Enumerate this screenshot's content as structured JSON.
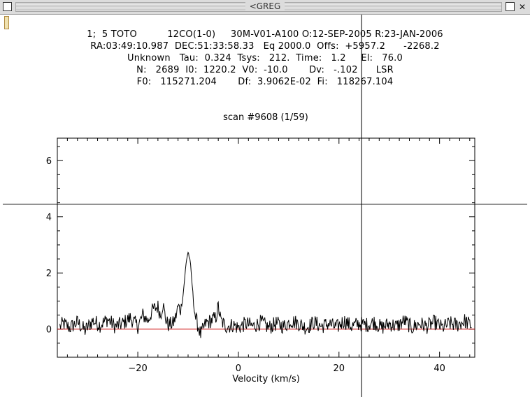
{
  "window": {
    "title": "<GREG",
    "close_icon": "close-icon",
    "maximize_icon": "maximize-icon",
    "menu_icon": "window-menu-icon"
  },
  "header": {
    "line1": "1;  5 TOTO          12CO(1-0)     30M-V01-A100 O:12-SEP-2005 R:23-JAN-2006",
    "line2": "RA:03:49:10.987  DEC:51:33:58.33   Eq 2000.0  Offs:  +5957.2      -2268.2",
    "line3": "Unknown   Tau:  0.324  Tsys:   212.  Time:   1.2     El:   76.0",
    "line4": "N:   2689  I0:  1220.2  V0:  -10.0       Dv:   -.102      LSR",
    "line5": "F0:   115271.204       Df:  3.9062E-02  Fi:   118267.104"
  },
  "plot_title": "scan #9608 (1/59)",
  "colors": {
    "baseline": "#cc0000",
    "spectrum": "#000000",
    "crosshair": "#000000"
  },
  "chart_data": {
    "type": "line",
    "title": "scan #9608 (1/59)",
    "xlabel": "Velocity (km/s)",
    "ylabel": "",
    "xlim": [
      -36,
      47
    ],
    "ylim": [
      -1,
      6.8
    ],
    "xticks": [
      -20,
      0,
      20,
      40
    ],
    "yticks": [
      0,
      2,
      4,
      6
    ],
    "baseline_y": 0,
    "cursor": {
      "x": 24.5,
      "y": 4.45
    },
    "series": [
      {
        "points": [
          [
            -35.5,
            0.1
          ],
          [
            -34.8,
            0.2
          ],
          [
            -33.5,
            0.05
          ],
          [
            -32,
            0.25
          ],
          [
            -30.5,
            -0.05
          ],
          [
            -29,
            0.3
          ],
          [
            -27.5,
            0.15
          ],
          [
            -26,
            0.35
          ],
          [
            -24.5,
            0.1
          ],
          [
            -23,
            0.2
          ],
          [
            -21.5,
            0.4
          ],
          [
            -20,
            0.1
          ],
          [
            -19,
            0.5
          ],
          [
            -18,
            0.3
          ],
          [
            -17,
            0.7
          ],
          [
            -16,
            0.8
          ],
          [
            -15.5,
            0.5
          ],
          [
            -15,
            0.9
          ],
          [
            -14.5,
            0.4
          ],
          [
            -14,
            0.15
          ],
          [
            -13,
            0.2
          ],
          [
            -12.5,
            0.4
          ],
          [
            -12,
            0.8
          ],
          [
            -11.5,
            0.7
          ],
          [
            -11,
            1.2
          ],
          [
            -10.7,
            1.8
          ],
          [
            -10.4,
            2.3
          ],
          [
            -10.2,
            2.6
          ],
          [
            -10.0,
            2.75
          ],
          [
            -9.8,
            2.6
          ],
          [
            -9.5,
            2.2
          ],
          [
            -9.2,
            1.6
          ],
          [
            -8.9,
            0.9
          ],
          [
            -8.5,
            0.4
          ],
          [
            -8.0,
            0.1
          ],
          [
            -7.5,
            -0.2
          ],
          [
            -6.5,
            0.2
          ],
          [
            -5.5,
            0.3
          ],
          [
            -4.5,
            0.4
          ],
          [
            -4.0,
            0.8
          ],
          [
            -3.5,
            0.3
          ],
          [
            -2.5,
            0.1
          ],
          [
            -1,
            0.15
          ],
          [
            0,
            0.05
          ],
          [
            1.5,
            0.2
          ],
          [
            3,
            0.1
          ],
          [
            4.5,
            0.25
          ],
          [
            6,
            0.05
          ],
          [
            7.5,
            0.2
          ],
          [
            9,
            0.1
          ],
          [
            10.5,
            0.3
          ],
          [
            12,
            0.2
          ],
          [
            13.5,
            0.05
          ],
          [
            15,
            0.25
          ],
          [
            16.5,
            0.1
          ],
          [
            18,
            0.2
          ],
          [
            19.5,
            0.05
          ],
          [
            21,
            0.3
          ],
          [
            22.5,
            0.1
          ],
          [
            24,
            0.2
          ],
          [
            25.5,
            0.15
          ],
          [
            27,
            0.25
          ],
          [
            28.5,
            0.05
          ],
          [
            30,
            0.2
          ],
          [
            31.5,
            0.1
          ],
          [
            33,
            0.3
          ],
          [
            34.5,
            0.05
          ],
          [
            36,
            0.2
          ],
          [
            37.5,
            0.1
          ],
          [
            39,
            0.25
          ],
          [
            40.5,
            0.05
          ],
          [
            42,
            0.2
          ],
          [
            43.5,
            0.15
          ],
          [
            45,
            0.3
          ],
          [
            46.5,
            0.1
          ]
        ]
      }
    ]
  }
}
